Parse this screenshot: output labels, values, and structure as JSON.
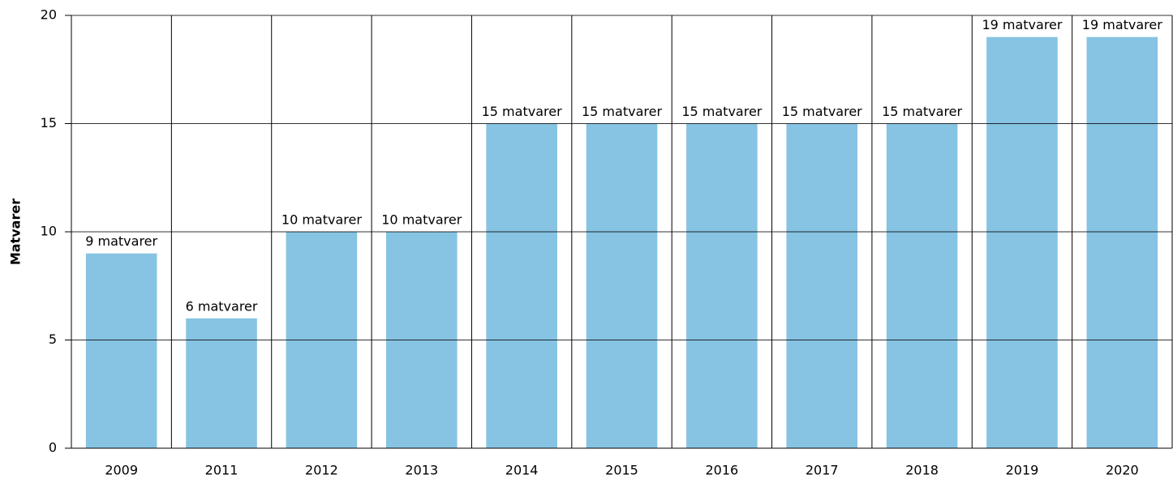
{
  "chart_data": {
    "type": "bar",
    "y_label": "Matvarer",
    "categories": [
      "2009",
      "2011",
      "2012",
      "2013",
      "2014",
      "2015",
      "2016",
      "2017",
      "2018",
      "2019",
      "2020"
    ],
    "values": [
      9,
      6,
      10,
      10,
      15,
      15,
      15,
      15,
      15,
      19,
      19
    ],
    "value_labels": [
      "9 matvarer",
      "6 matvarer",
      "10 matvarer",
      "10 matvarer",
      "15 matvarer",
      "15 matvarer",
      "15 matvarer",
      "15 matvarer",
      "15 matvarer",
      "19 matvarer",
      "19 matvarer"
    ],
    "color": "#87c3e3",
    "ylim": [
      0,
      20
    ],
    "yticks": [
      0,
      5,
      10,
      15,
      20
    ],
    "grid": true
  }
}
